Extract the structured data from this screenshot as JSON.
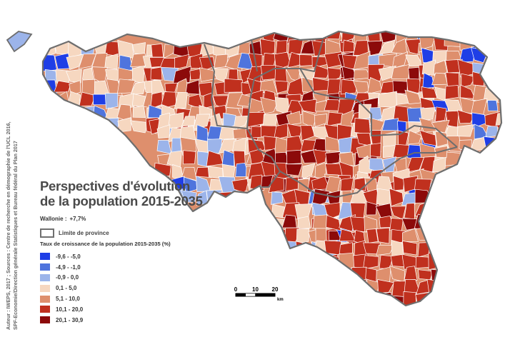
{
  "title_line1": "Perspectives d'évolution",
  "title_line2": "de la population 2015-2035",
  "wallonie": {
    "label": "Wallonie :",
    "value": "+7,7%"
  },
  "province_legend": {
    "label": "Limite de province"
  },
  "legend": {
    "title": "Taux de croissance de la population 2015-2035 (%)",
    "classes": [
      {
        "label": "-9,6 - -5,0",
        "color": "#1f3ee6"
      },
      {
        "label": "-4,9 - -1,0",
        "color": "#4f74dd"
      },
      {
        "label": "-0,9 - 0,0",
        "color": "#9cb4ea"
      },
      {
        "label": "0,1 - 5,0",
        "color": "#f6d7c0"
      },
      {
        "label": "5,1 - 10,0",
        "color": "#de8f6d"
      },
      {
        "label": "10,1 - 20,0",
        "color": "#c0301e"
      },
      {
        "label": "20,1 - 30,9",
        "color": "#8c0a0a"
      }
    ]
  },
  "scale_bar": {
    "ticks": [
      "0",
      "10",
      "20"
    ],
    "unit": "km"
  },
  "credits": {
    "line1": "Auteur : IWEPS, 2017 ; Sources : Centre de recherche en démographie de l'UCL 2016,",
    "line2": "SPF-Economie/Direction générale Statistiques  et Bureau fédéral du Plan 2017"
  },
  "colors": {
    "province_border": "#6e6e6e",
    "municipality_border": "#ffffff"
  }
}
